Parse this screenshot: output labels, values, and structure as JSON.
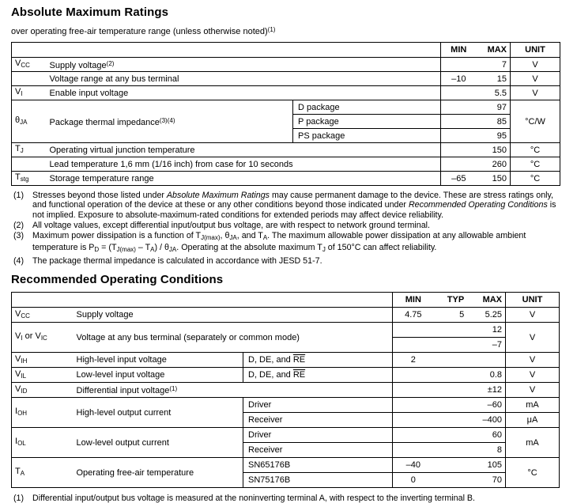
{
  "doc": {
    "amr": {
      "title": "Absolute Maximum Ratings",
      "subtitle": [
        {
          "t": "over operating free-air temperature range (unless otherwise noted)"
        },
        {
          "t": "(1)",
          "s": "sup"
        }
      ],
      "header": {
        "min": "MIN",
        "max": "MAX",
        "unit": "UNIT"
      },
      "rows": [
        {
          "symbol": [
            {
              "t": "V"
            },
            {
              "t": "CC",
              "s": "sub"
            }
          ],
          "desc": [
            {
              "t": "Supply voltage"
            },
            {
              "t": "(2)",
              "s": "sup"
            }
          ],
          "min": "",
          "max": "7",
          "unit": "V"
        },
        {
          "symbol": [],
          "desc": [
            {
              "t": "Voltage range at any bus terminal"
            }
          ],
          "min": "–10",
          "max": "15",
          "unit": "V"
        },
        {
          "symbol": [
            {
              "t": "V"
            },
            {
              "t": "I",
              "s": "sub"
            }
          ],
          "desc": [
            {
              "t": "Enable input voltage"
            }
          ],
          "min": "",
          "max": "5.5",
          "unit": "V"
        },
        {
          "symbol": [
            {
              "t": "θ"
            },
            {
              "t": "JA",
              "s": "sub"
            }
          ],
          "desc": [
            {
              "t": "Package thermal impedance"
            },
            {
              "t": "(3)(4)",
              "s": "sup"
            }
          ],
          "cond": "D package",
          "min": "",
          "max": "97",
          "unit": "°C/W"
        },
        {
          "cond": "P package",
          "min": "",
          "max": "85"
        },
        {
          "cond": "PS package",
          "min": "",
          "max": "95"
        },
        {
          "symbol": [
            {
              "t": "T"
            },
            {
              "t": "J",
              "s": "sub"
            }
          ],
          "desc": [
            {
              "t": "Operating virtual junction temperature"
            }
          ],
          "min": "",
          "max": "150",
          "unit": "°C"
        },
        {
          "symbol": [],
          "desc": [
            {
              "t": "Lead temperature 1,6 mm (1/16 inch) from case for 10 seconds"
            }
          ],
          "min": "",
          "max": "260",
          "unit": "°C"
        },
        {
          "symbol": [
            {
              "t": "T"
            },
            {
              "t": "stg",
              "s": "sub"
            }
          ],
          "desc": [
            {
              "t": "Storage temperature range"
            }
          ],
          "min": "–65",
          "max": "150",
          "unit": "°C"
        }
      ],
      "footnotes": [
        {
          "num": "(1)",
          "text": [
            {
              "t": "Stresses beyond those listed under "
            },
            {
              "t": "Absolute Maximum Ratings",
              "s": "i"
            },
            {
              "t": " may cause permanent damage to the device. These are stress ratings only, and functional operation of the device at these or any other conditions beyond those indicated under "
            },
            {
              "t": "Recommended Operating Conditions",
              "s": "i"
            },
            {
              "t": " is not implied. Exposure to absolute-maximum-rated conditions for extended periods may affect device reliability."
            }
          ]
        },
        {
          "num": "(2)",
          "text": [
            {
              "t": "All voltage values, except differential input/output bus voltage, are with respect to network ground terminal."
            }
          ]
        },
        {
          "num": "(3)",
          "text": [
            {
              "t": "Maximum power dissipation is a function of T"
            },
            {
              "t": "J(max)",
              "s": "sub"
            },
            {
              "t": ", θ"
            },
            {
              "t": "JA",
              "s": "sub"
            },
            {
              "t": ", and T"
            },
            {
              "t": "A",
              "s": "sub"
            },
            {
              "t": ". The maximum allowable power dissipation at any allowable ambient temperature is P"
            },
            {
              "t": "D",
              "s": "sub"
            },
            {
              "t": " = (T"
            },
            {
              "t": "J(max)",
              "s": "sub"
            },
            {
              "t": " – T"
            },
            {
              "t": "A",
              "s": "sub"
            },
            {
              "t": ") / θ"
            },
            {
              "t": "JA",
              "s": "sub"
            },
            {
              "t": ". Operating at the absolute maximum T"
            },
            {
              "t": "J",
              "s": "sub"
            },
            {
              "t": " of 150°C can affect reliability."
            }
          ]
        },
        {
          "num": "(4)",
          "text": [
            {
              "t": "The package thermal impedance is calculated in accordance with JESD 51-7."
            }
          ]
        }
      ]
    },
    "roc": {
      "title": "Recommended Operating Conditions",
      "header": {
        "min": "MIN",
        "typ": "TYP",
        "max": "MAX",
        "unit": "UNIT"
      },
      "rows": [
        {
          "symbol": [
            {
              "t": "V"
            },
            {
              "t": "CC",
              "s": "sub"
            }
          ],
          "desc": [
            {
              "t": "Supply voltage"
            }
          ],
          "min": "4.75",
          "typ": "5",
          "max": "5.25",
          "unit": "V"
        },
        {
          "symbol": [
            {
              "t": "V"
            },
            {
              "t": "I",
              "s": "sub"
            },
            {
              "t": " or V"
            },
            {
              "t": "IC",
              "s": "sub"
            }
          ],
          "desc": [
            {
              "t": "Voltage at any bus terminal (separately or common mode)"
            }
          ],
          "min": "",
          "typ": "",
          "max": "12",
          "unit": "V"
        },
        {
          "min": "",
          "typ": "",
          "max": "–7"
        },
        {
          "symbol": [
            {
              "t": "V"
            },
            {
              "t": "IH",
              "s": "sub"
            }
          ],
          "desc": [
            {
              "t": "High-level input voltage"
            }
          ],
          "cond": [
            {
              "t": "D, DE, and "
            },
            {
              "t": "RE",
              "s": "ov"
            }
          ],
          "min": "2",
          "typ": "",
          "max": "",
          "unit": "V"
        },
        {
          "symbol": [
            {
              "t": "V"
            },
            {
              "t": "IL",
              "s": "sub"
            }
          ],
          "desc": [
            {
              "t": "Low-level input voltage"
            }
          ],
          "cond": [
            {
              "t": "D, DE, and "
            },
            {
              "t": "RE",
              "s": "ov"
            }
          ],
          "min": "",
          "typ": "",
          "max": "0.8",
          "unit": "V"
        },
        {
          "symbol": [
            {
              "t": "V"
            },
            {
              "t": "ID",
              "s": "sub"
            }
          ],
          "desc": [
            {
              "t": "Differential input voltage"
            },
            {
              "t": "(1)",
              "s": "sup"
            }
          ],
          "min": "",
          "typ": "",
          "max": "±12",
          "unit": "V"
        },
        {
          "symbol": [
            {
              "t": "I"
            },
            {
              "t": "OH",
              "s": "sub"
            }
          ],
          "desc": [
            {
              "t": "High-level output current"
            }
          ],
          "cond": [
            {
              "t": "Driver"
            }
          ],
          "min": "",
          "typ": "",
          "max": "–60",
          "unit": "mA"
        },
        {
          "cond": [
            {
              "t": "Receiver"
            }
          ],
          "min": "",
          "typ": "",
          "max": "–400",
          "unit": "μA"
        },
        {
          "symbol": [
            {
              "t": "I"
            },
            {
              "t": "OL",
              "s": "sub"
            }
          ],
          "desc": [
            {
              "t": "Low-level output current"
            }
          ],
          "cond": [
            {
              "t": "Driver"
            }
          ],
          "min": "",
          "typ": "",
          "max": "60",
          "unit": "mA"
        },
        {
          "cond": [
            {
              "t": "Receiver"
            }
          ],
          "min": "",
          "typ": "",
          "max": "8"
        },
        {
          "symbol": [
            {
              "t": "T"
            },
            {
              "t": "A",
              "s": "sub"
            }
          ],
          "desc": [
            {
              "t": "Operating free-air temperature"
            }
          ],
          "cond": [
            {
              "t": "SN65176B"
            }
          ],
          "min": "–40",
          "typ": "",
          "max": "105",
          "unit": "°C"
        },
        {
          "cond": [
            {
              "t": "SN75176B"
            }
          ],
          "min": "0",
          "typ": "",
          "max": "70"
        }
      ],
      "footnotes": [
        {
          "num": "(1)",
          "text": [
            {
              "t": "Differential input/output bus voltage is measured at the noninverting terminal A, with respect to the inverting terminal B."
            }
          ]
        }
      ]
    }
  }
}
